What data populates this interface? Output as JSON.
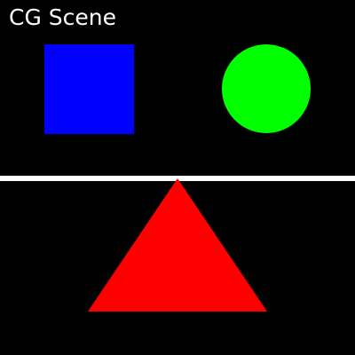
{
  "title": "CG Scene",
  "background_color": "#000000",
  "title_color": "#ffffff",
  "shapes": [
    {
      "kind": "square",
      "color": "#0000ff"
    },
    {
      "kind": "circle",
      "color": "#00ff00"
    },
    {
      "kind": "divider-line",
      "color": "#ffffff"
    },
    {
      "kind": "triangle",
      "color": "#ff0000"
    }
  ]
}
